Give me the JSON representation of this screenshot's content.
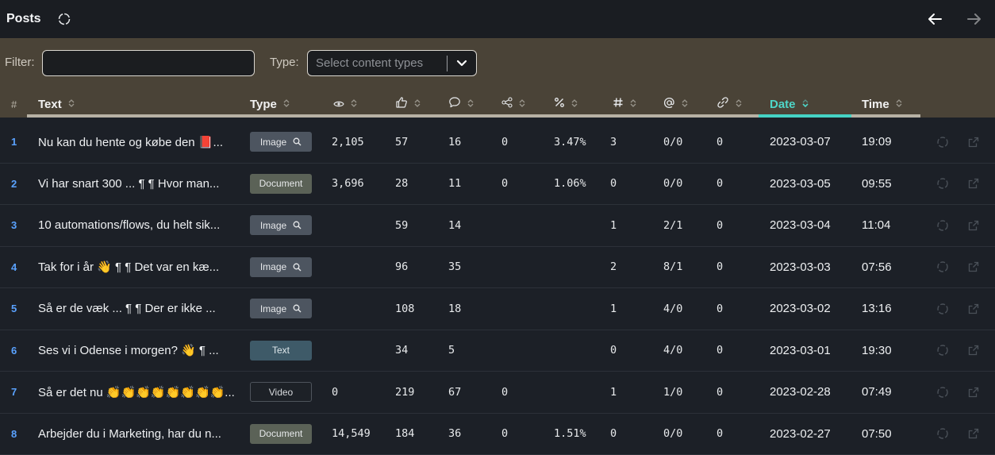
{
  "header": {
    "title": "Posts"
  },
  "filters": {
    "filter_label": "Filter:",
    "filter_value": "",
    "type_label": "Type:",
    "type_placeholder": "Select content types"
  },
  "columns": {
    "hash": "#",
    "text": "Text",
    "type": "Type",
    "date": "Date",
    "time": "Time"
  },
  "column_icons": [
    "eye-icon",
    "thumbs-up-icon",
    "comment-icon",
    "share-icon",
    "percent-icon",
    "hashtag-icon",
    "mention-icon",
    "link-icon"
  ],
  "colors": {
    "accent": "#4ed6c8",
    "row_number": "#5aa2ff",
    "band": "#4a4337"
  },
  "rows": [
    {
      "num": "1",
      "text": "Nu kan du hente og købe den 📕...",
      "type": "Image",
      "views": "2,105",
      "likes": "57",
      "comments": "16",
      "shares": "0",
      "pct": "3.47%",
      "hashtags": "3",
      "mentions": "0/0",
      "links": "0",
      "date": "2023-03-07",
      "time": "19:09"
    },
    {
      "num": "2",
      "text": "Vi har snart 300 ... ¶ ¶ Hvor man...",
      "type": "Document",
      "views": "3,696",
      "likes": "28",
      "comments": "11",
      "shares": "0",
      "pct": "1.06%",
      "hashtags": "0",
      "mentions": "0/0",
      "links": "0",
      "date": "2023-03-05",
      "time": "09:55"
    },
    {
      "num": "3",
      "text": "10 automations/flows, du helt sik...",
      "type": "Image",
      "views": "",
      "likes": "59",
      "comments": "14",
      "shares": "",
      "pct": "",
      "hashtags": "1",
      "mentions": "2/1",
      "links": "0",
      "date": "2023-03-04",
      "time": "11:04"
    },
    {
      "num": "4",
      "text": "Tak for i år 👋 ¶ ¶ Det var en kæ...",
      "type": "Image",
      "views": "",
      "likes": "96",
      "comments": "35",
      "shares": "",
      "pct": "",
      "hashtags": "2",
      "mentions": "8/1",
      "links": "0",
      "date": "2023-03-03",
      "time": "07:56"
    },
    {
      "num": "5",
      "text": "Så er de væk ... ¶ ¶ Der er ikke ...",
      "type": "Image",
      "views": "",
      "likes": "108",
      "comments": "18",
      "shares": "",
      "pct": "",
      "hashtags": "1",
      "mentions": "4/0",
      "links": "0",
      "date": "2023-03-02",
      "time": "13:16"
    },
    {
      "num": "6",
      "text": "Ses vi i Odense i morgen? 👋 ¶ ...",
      "type": "Text",
      "views": "",
      "likes": "34",
      "comments": "5",
      "shares": "",
      "pct": "",
      "hashtags": "0",
      "mentions": "4/0",
      "links": "0",
      "date": "2023-03-01",
      "time": "19:30"
    },
    {
      "num": "7",
      "text": "Så er det nu 👏👏👏👏👏👏👏👏...",
      "type": "Video",
      "views": "0",
      "likes": "219",
      "comments": "67",
      "shares": "0",
      "pct": "",
      "hashtags": "1",
      "mentions": "1/0",
      "links": "0",
      "date": "2023-02-28",
      "time": "07:49"
    },
    {
      "num": "8",
      "text": "Arbejder du i Marketing, har du n...",
      "type": "Document",
      "views": "14,549",
      "likes": "184",
      "comments": "36",
      "shares": "0",
      "pct": "1.51%",
      "hashtags": "0",
      "mentions": "0/0",
      "links": "0",
      "date": "2023-02-27",
      "time": "07:50"
    }
  ]
}
